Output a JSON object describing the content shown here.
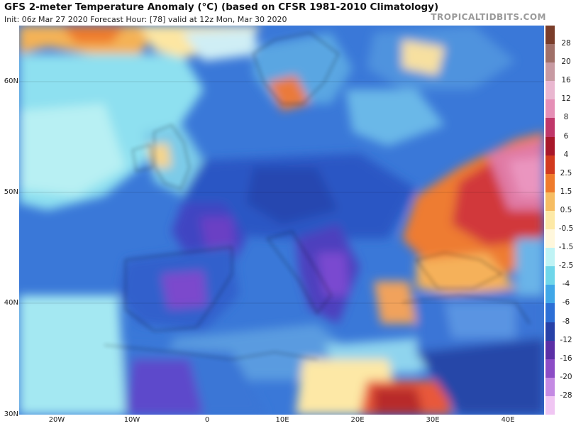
{
  "header": {
    "title": "GFS 2-meter Temperature Anomaly (°C) (based on CFSR 1981-2010 Climatology)",
    "subtitle": "Init: 06z Mar 27 2020   Forecast Hour: [78]   valid at 12z Mon, Mar 30 2020",
    "brand": "TROPICALTIDBITS.COM"
  },
  "map": {
    "region": "Europe",
    "lat_labels": [
      "60N",
      "50N",
      "40N",
      "30N"
    ],
    "lon_labels": [
      "20W",
      "10W",
      "0",
      "10E",
      "20E",
      "30E",
      "40E"
    ]
  },
  "colorbar": {
    "labels": [
      "28",
      "20",
      "16",
      "12",
      "8",
      "6",
      "4",
      "2.5",
      "1.5",
      "0.5",
      "-0.5",
      "-1.5",
      "-2.5",
      "-4",
      "-6",
      "-8",
      "-12",
      "-16",
      "-20",
      "-28"
    ],
    "colors": [
      "#7a3d2a",
      "#a07068",
      "#c79aa2",
      "#e9b7d0",
      "#e58fb6",
      "#c0376a",
      "#a8172a",
      "#d23a1e",
      "#ef7b2c",
      "#f6bd63",
      "#fde9a6",
      "#fff7dc",
      "#bff3f5",
      "#6fd6ea",
      "#40a7e8",
      "#2c6fd6",
      "#2741a8",
      "#5b2fa6",
      "#8c4cc6",
      "#c48ae3",
      "#f0c6f3"
    ]
  }
}
